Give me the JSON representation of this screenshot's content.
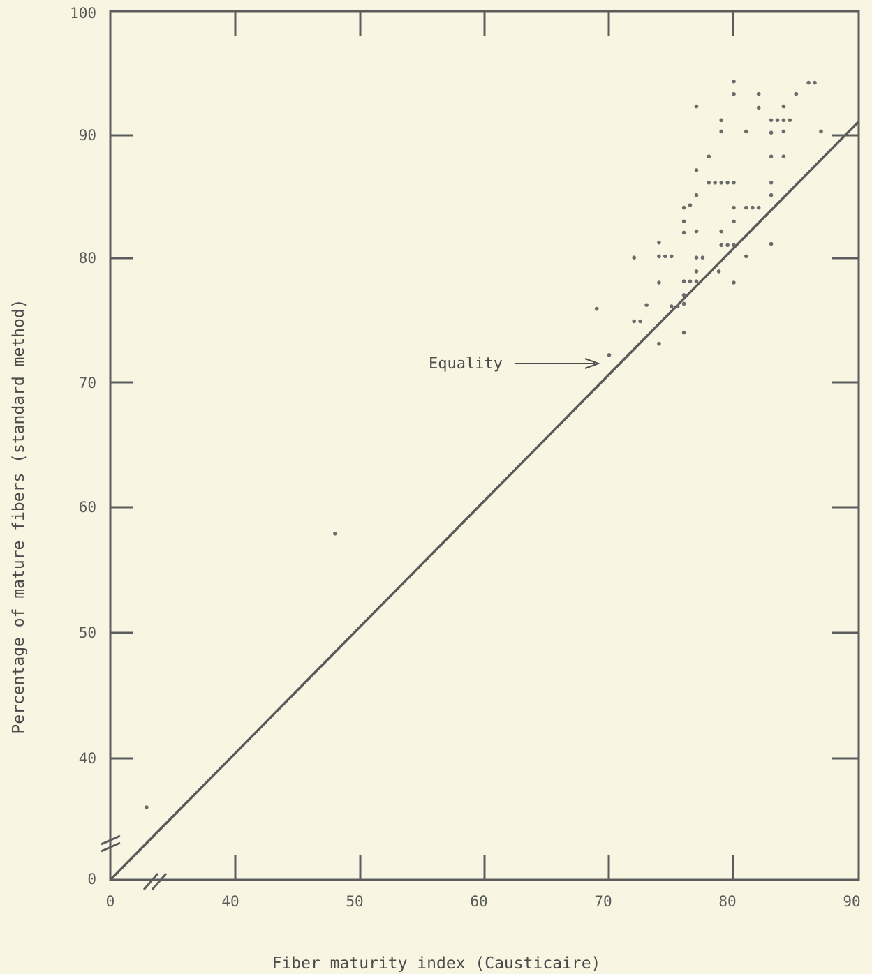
{
  "chart_data": {
    "type": "scatter",
    "xlabel": "Fiber maturity index (Causticaire)",
    "ylabel": "Percentage of mature fibers (standard method)",
    "x_ticks": [
      "0",
      "40",
      "50",
      "60",
      "70",
      "80",
      "90"
    ],
    "y_ticks": [
      "0",
      "40",
      "50",
      "60",
      "70",
      "80",
      "90",
      "100"
    ],
    "x_range": [
      30,
      90
    ],
    "y_range": [
      30,
      100
    ],
    "axis_breaks": {
      "x": true,
      "y": true
    },
    "grid": false,
    "annotations": [
      {
        "text": "Equality",
        "points_to": [
          69.5,
          71.5
        ]
      }
    ],
    "reference_line": {
      "name": "Equality",
      "from": [
        30,
        30
      ],
      "to": [
        90,
        91
      ]
    },
    "points": [
      [
        33,
        36
      ],
      [
        48,
        58
      ],
      [
        69,
        76
      ],
      [
        70,
        72.3
      ],
      [
        72,
        80.1
      ],
      [
        72,
        75
      ],
      [
        72.5,
        75
      ],
      [
        73,
        76.3
      ],
      [
        74,
        81.3
      ],
      [
        74,
        80.2
      ],
      [
        74.5,
        80.2
      ],
      [
        75,
        80.2
      ],
      [
        74,
        78.1
      ],
      [
        74,
        73.2
      ],
      [
        75,
        76.2
      ],
      [
        75.5,
        76.2
      ],
      [
        76,
        76.4
      ],
      [
        76,
        74.1
      ],
      [
        76,
        77.1
      ],
      [
        76,
        84.1
      ],
      [
        76.5,
        84.3
      ],
      [
        76,
        83
      ],
      [
        76,
        82.1
      ],
      [
        76,
        78.2
      ],
      [
        76.5,
        78.2
      ],
      [
        77,
        78.2
      ],
      [
        77,
        92.2
      ],
      [
        77,
        87.1
      ],
      [
        77,
        85.1
      ],
      [
        77,
        82.2
      ],
      [
        77,
        80.1
      ],
      [
        77.5,
        80.1
      ],
      [
        77,
        79
      ],
      [
        78,
        88.2
      ],
      [
        78,
        86.1
      ],
      [
        78.5,
        86.1
      ],
      [
        79,
        86.1
      ],
      [
        79.5,
        86.1
      ],
      [
        80,
        86.1
      ],
      [
        79,
        91.1
      ],
      [
        79,
        90.2
      ],
      [
        79,
        82.2
      ],
      [
        79,
        81.1
      ],
      [
        78.8,
        79
      ],
      [
        80,
        94.2
      ],
      [
        80,
        93.2
      ],
      [
        80,
        84.1
      ],
      [
        80,
        83
      ],
      [
        80,
        81.1
      ],
      [
        79.5,
        81.1
      ],
      [
        80,
        78.1
      ],
      [
        81,
        90.2
      ],
      [
        81,
        84.1
      ],
      [
        81.5,
        84.1
      ],
      [
        82,
        84.1
      ],
      [
        81,
        80.2
      ],
      [
        82,
        93.2
      ],
      [
        82,
        92.1
      ],
      [
        83,
        91.1
      ],
      [
        83,
        90.1
      ],
      [
        83,
        88.2
      ],
      [
        83,
        86.1
      ],
      [
        83,
        85.1
      ],
      [
        83,
        81.2
      ],
      [
        83.5,
        91.1
      ],
      [
        84,
        91.1
      ],
      [
        84.5,
        91.1
      ],
      [
        84,
        92.2
      ],
      [
        84,
        90.2
      ],
      [
        84,
        88.2
      ],
      [
        85,
        93.2
      ],
      [
        86,
        94.1
      ],
      [
        86.5,
        94.1
      ],
      [
        87,
        90.2
      ]
    ]
  }
}
